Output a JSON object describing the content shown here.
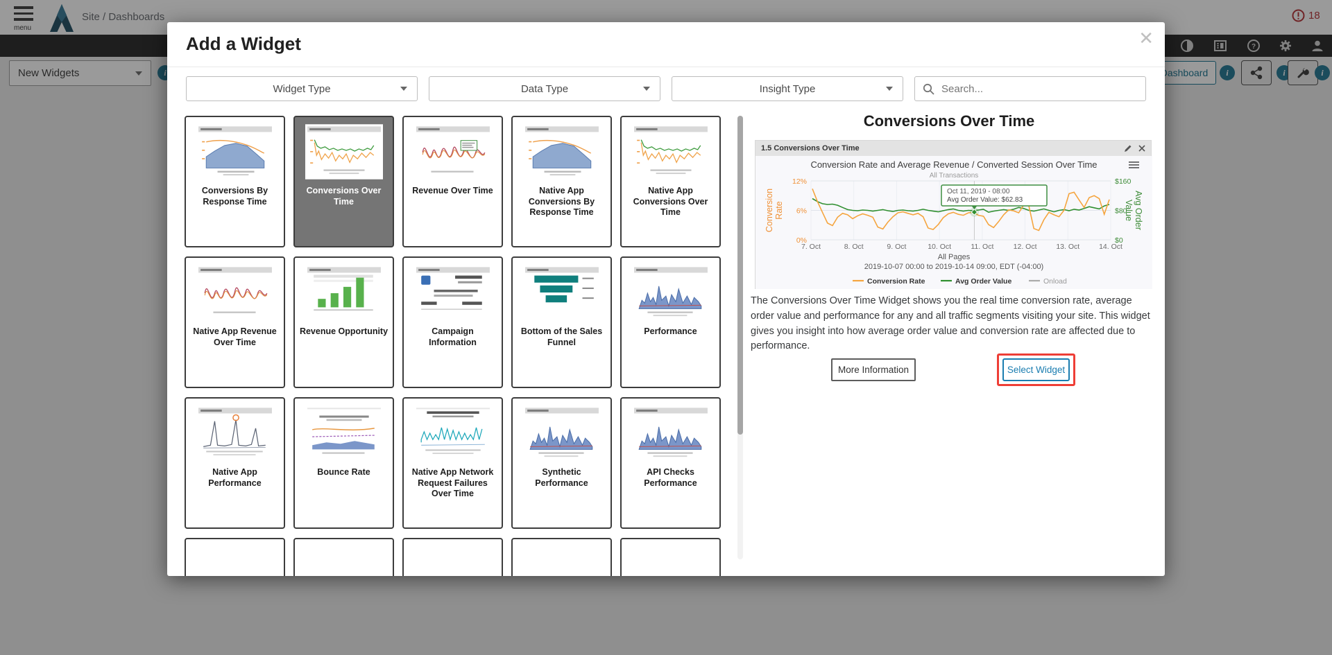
{
  "topbar": {
    "menu_label": "menu",
    "breadcrumb": "Site / Dashboards",
    "alert_count": "18"
  },
  "background_controls": {
    "new_widgets_label": "New Widgets",
    "dashboard_button": "Dashboard"
  },
  "icons": {
    "hamburger": "three-bars",
    "search": "magnifier",
    "caret": "triangle-down",
    "contrast": "half-circle",
    "film": "filmstrip",
    "help": "question-circle",
    "settings": "gear",
    "user": "person",
    "share": "share-nodes",
    "wrench": "wrench",
    "info": "i-circle",
    "edit": "pencil",
    "close": "x",
    "chart_menu": "three-lines",
    "alert": "exclamation-circle"
  },
  "colors": {
    "accent_teal": "#18718e",
    "alert_red": "#b3282d",
    "select_blue": "#1a7db0",
    "highlight_red": "#ee3e36",
    "orange_series": "#f5a53f",
    "green_series": "#2f8f2f"
  },
  "modal": {
    "title": "Add a Widget",
    "filters": [
      {
        "label": "Widget Type"
      },
      {
        "label": "Data Type"
      },
      {
        "label": "Insight Type"
      }
    ],
    "search_placeholder": "Search...",
    "tiles": [
      {
        "label": "Conversions By Response Time",
        "kind": "area-blue",
        "selected": false
      },
      {
        "label": "Conversions Over Time",
        "kind": "dual-line",
        "selected": true
      },
      {
        "label": "Revenue Over Time",
        "kind": "wavy-red-tip",
        "selected": false
      },
      {
        "label": "Native App Conversions By Response Time",
        "kind": "area-blue",
        "selected": false
      },
      {
        "label": "Native App Conversions Over Time",
        "kind": "dual-line",
        "selected": false
      },
      {
        "label": "Native App Revenue Over Time",
        "kind": "wavy-red",
        "selected": false
      },
      {
        "label": "Revenue Opportunity",
        "kind": "bars-green",
        "selected": false
      },
      {
        "label": "Campaign Information",
        "kind": "table-info",
        "selected": false
      },
      {
        "label": "Bottom of the Sales Funnel",
        "kind": "funnel",
        "selected": false
      },
      {
        "label": "Performance",
        "kind": "area-spiky",
        "selected": false
      },
      {
        "label": "Native App Performance",
        "kind": "spiky-marker",
        "selected": false
      },
      {
        "label": "Bounce Rate",
        "kind": "bounce",
        "selected": false
      },
      {
        "label": "Native App Network Request Failures Over Time",
        "kind": "cyan-spiky",
        "selected": false
      },
      {
        "label": "Synthetic Performance",
        "kind": "area-spiky",
        "selected": false
      },
      {
        "label": "API Checks Performance",
        "kind": "area-spiky",
        "selected": false
      },
      {
        "label": "",
        "kind": "blank",
        "selected": false
      },
      {
        "label": "",
        "kind": "blank",
        "selected": false
      },
      {
        "label": "",
        "kind": "blank",
        "selected": false
      },
      {
        "label": "",
        "kind": "blank",
        "selected": false
      },
      {
        "label": "",
        "kind": "blank",
        "selected": false
      }
    ],
    "detail": {
      "heading": "Conversions Over Time",
      "card_header": "1.5 Conversions Over Time",
      "description": "The Conversions Over Time Widget shows you the real time conversion rate, average order value and performance for any and all traffic segments visiting your site. This widget gives you insight into how average order value and conversion rate are affected due to performance.",
      "more_info_button": "More Information",
      "select_widget_button": "Select Widget"
    }
  },
  "chart_data": {
    "type": "line",
    "title": "Conversion Rate and Average Revenue / Converted Session Over Time",
    "subtitle": "All Transactions",
    "x_tick_labels": [
      "7. Oct",
      "8. Oct",
      "9. Oct",
      "10. Oct",
      "11. Oct",
      "12. Oct",
      "13. Oct",
      "14. Oct"
    ],
    "left_axis": {
      "label": "Conversion Rate",
      "ticks": [
        "12%",
        "6%",
        "0%"
      ],
      "range": [
        0,
        12
      ],
      "color": "#ef9035"
    },
    "right_axis": {
      "label": "Avg Order Value",
      "ticks": [
        "$160",
        "$80",
        "$0"
      ],
      "range": [
        0,
        160
      ],
      "color": "#3d8b37"
    },
    "grid": true,
    "legend_position": "bottom",
    "series": [
      {
        "name": "Conversion Rate",
        "axis": "left",
        "color": "#f5a53f",
        "values": [
          10.4,
          7.8,
          5.6,
          3.4,
          2.9,
          4.6,
          5.4,
          5.1,
          4.3,
          4.9,
          5.3,
          5.0,
          4.6,
          2.6,
          2.2,
          3.6,
          4.7,
          5.5,
          5.7,
          5.4,
          5.1,
          5.4,
          4.7,
          2.4,
          2.1,
          3.1,
          4.5,
          5.3,
          5.6,
          5.2,
          5.0,
          5.5,
          5.6,
          5.0,
          4.8,
          3.1,
          2.5,
          3.7,
          5.1,
          6.1,
          5.9,
          5.5,
          7.1,
          7.0,
          2.3,
          1.9,
          4.1,
          5.6,
          5.1,
          4.7,
          6.0,
          9.4,
          9.7,
          8.1,
          6.6,
          8.6,
          9.0,
          8.4,
          5.2,
          8.2
        ]
      },
      {
        "name": "Avg Order Value",
        "axis": "right",
        "color": "#2f8f2f",
        "values": [
          112,
          104,
          98,
          96,
          97,
          94,
          88,
          82,
          80,
          79,
          81,
          80,
          78,
          80,
          82,
          79,
          77,
          80,
          81,
          79,
          78,
          80,
          83,
          80,
          78,
          76,
          79,
          82,
          84,
          80,
          78,
          80,
          79,
          81,
          83,
          75,
          78,
          80,
          82,
          80,
          83,
          88,
          85,
          80,
          78,
          81,
          84,
          80,
          76,
          80,
          82,
          79,
          83,
          81,
          85,
          90,
          87,
          84,
          92,
          96
        ]
      },
      {
        "name": "Onload",
        "axis": "right",
        "color": "#aaaaaa",
        "values": []
      }
    ],
    "tooltip": {
      "line1": "Oct 11, 2019 - 08:00",
      "line2": "Avg Order Value: $62.83",
      "x_fraction": 0.545
    },
    "footer_line1": "All Pages",
    "footer_line2": "2019-10-07 00:00 to 2019-10-14 09:00, EDT (-04:00)",
    "legend": [
      "Conversion Rate",
      "Avg Order Value",
      "Onload"
    ]
  }
}
